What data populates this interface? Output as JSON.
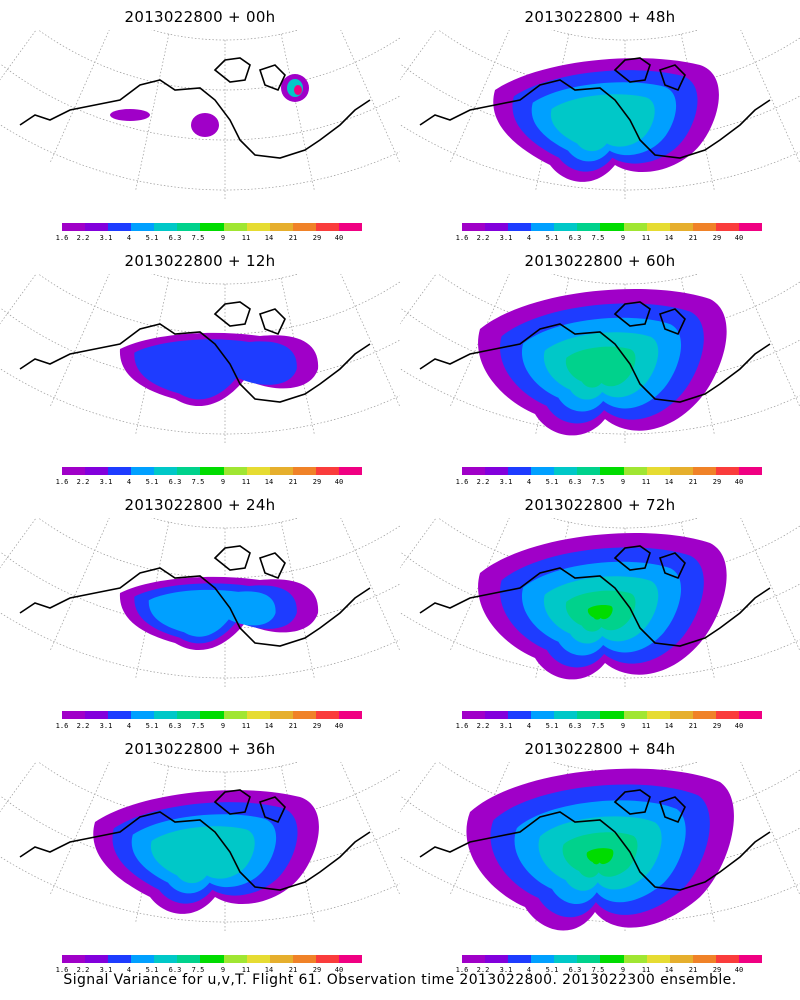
{
  "panels": [
    {
      "title": "2013022800 + 00h",
      "intensity": 0
    },
    {
      "title": "2013022800 + 48h",
      "intensity": 4
    },
    {
      "title": "2013022800 + 12h",
      "intensity": 1
    },
    {
      "title": "2013022800 + 60h",
      "intensity": 5
    },
    {
      "title": "2013022800 + 24h",
      "intensity": 2
    },
    {
      "title": "2013022800 + 72h",
      "intensity": 6
    },
    {
      "title": "2013022800 + 36h",
      "intensity": 3
    },
    {
      "title": "2013022800 + 84h",
      "intensity": 7
    }
  ],
  "colorbar": {
    "labels": [
      "1.6",
      "2.2",
      "3.1",
      "4",
      "5.1",
      "6.3",
      "7.5",
      "9",
      "11",
      "14",
      "21",
      "29",
      "40"
    ],
    "colors": [
      "#a000c8",
      "#8200dc",
      "#1e3cff",
      "#00a0ff",
      "#00c8c8",
      "#00d28c",
      "#00dc00",
      "#a0e632",
      "#e6dc32",
      "#e6af2d",
      "#f08228",
      "#fa3c3c",
      "#f00082"
    ]
  },
  "footer": "Signal Variance for u,v,T. Flight 61. Observation time 2013022800. 2013022300 ensemble."
}
